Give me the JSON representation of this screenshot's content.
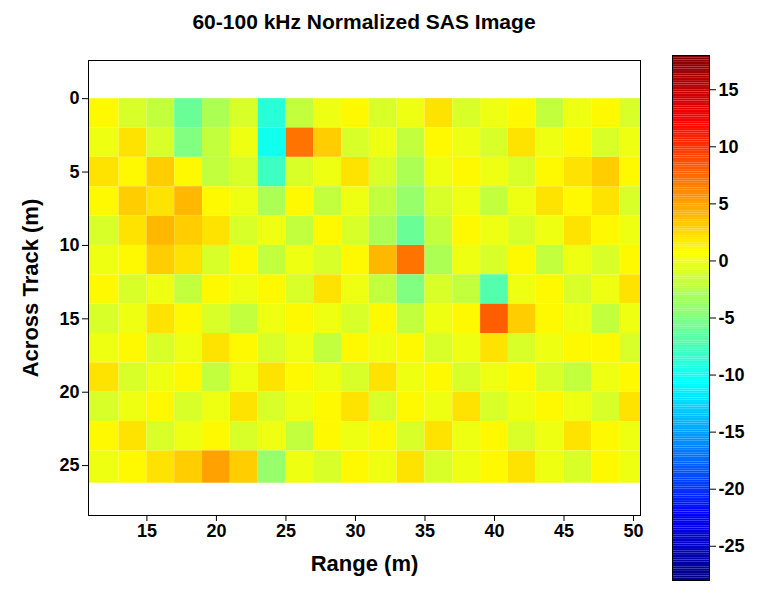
{
  "chart_data": {
    "type": "heatmap",
    "title": "60-100 kHz Normalized SAS Image",
    "x_label": "Range (m)",
    "y_label": "Across Track (m)",
    "xlim": [
      10.8,
      50.5
    ],
    "ylim": [
      -2.6,
      28.4
    ],
    "xticks": [
      15,
      20,
      25,
      30,
      35,
      40,
      45,
      50
    ],
    "yticks": [
      0,
      5,
      10,
      15,
      20,
      25
    ],
    "x_edges": [
      10.8,
      13,
      15,
      17,
      19,
      21,
      23,
      25,
      27,
      29,
      31,
      33,
      35,
      37,
      39,
      41,
      43,
      45,
      47,
      49,
      50.5
    ],
    "y_edges": [
      0,
      2,
      4,
      6,
      8,
      10,
      12,
      14,
      16,
      18,
      20,
      22,
      24,
      26.2
    ],
    "values": [
      [
        1,
        -1,
        -2,
        -6,
        -3,
        -1,
        -9,
        -2,
        0,
        1,
        -1,
        0,
        2,
        -1,
        0,
        1,
        -2,
        0,
        1,
        -1
      ],
      [
        0,
        2,
        -1,
        -5,
        -2,
        0,
        -10,
        7,
        3,
        -1,
        0,
        -2,
        1,
        0,
        -1,
        2,
        0,
        1,
        -1,
        0
      ],
      [
        2,
        1,
        3,
        1,
        -2,
        -1,
        -8,
        -1,
        0,
        2,
        -1,
        -3,
        0,
        1,
        0,
        -1,
        1,
        2,
        3,
        1
      ],
      [
        1,
        3,
        2,
        4,
        1,
        0,
        -3,
        1,
        -2,
        0,
        -2,
        -4,
        -1,
        0,
        -2,
        0,
        2,
        1,
        2,
        -1
      ],
      [
        -1,
        2,
        4,
        3,
        2,
        -1,
        0,
        -2,
        1,
        -1,
        -3,
        -6,
        -2,
        1,
        0,
        -1,
        0,
        2,
        1,
        0
      ],
      [
        0,
        1,
        3,
        2,
        -1,
        1,
        -2,
        0,
        -1,
        1,
        4,
        7,
        -3,
        0,
        -1,
        1,
        -2,
        0,
        -1,
        1
      ],
      [
        1,
        -1,
        0,
        -2,
        1,
        0,
        1,
        -1,
        2,
        0,
        -2,
        -5,
        -1,
        -2,
        -7,
        0,
        1,
        -1,
        0,
        2
      ],
      [
        -1,
        0,
        2,
        1,
        -1,
        -2,
        0,
        1,
        0,
        -1,
        1,
        -2,
        0,
        1,
        8,
        3,
        1,
        0,
        -2,
        0
      ],
      [
        0,
        1,
        -1,
        0,
        2,
        1,
        -1,
        0,
        -2,
        1,
        0,
        1,
        -1,
        0,
        2,
        -1,
        0,
        1,
        1,
        -1
      ],
      [
        2,
        -1,
        0,
        1,
        -2,
        0,
        2,
        1,
        0,
        -1,
        2,
        0,
        1,
        -1,
        0,
        1,
        -1,
        -2,
        0,
        1
      ],
      [
        -1,
        0,
        1,
        -1,
        0,
        2,
        -1,
        0,
        1,
        2,
        -1,
        1,
        0,
        2,
        -1,
        0,
        1,
        0,
        -1,
        2
      ],
      [
        1,
        2,
        -1,
        0,
        1,
        -1,
        0,
        -2,
        1,
        0,
        1,
        -1,
        2,
        0,
        1,
        -1,
        0,
        2,
        1,
        0
      ],
      [
        0,
        1,
        2,
        3,
        5,
        3,
        -4,
        0,
        -1,
        1,
        0,
        2,
        -1,
        0,
        1,
        2,
        0,
        -1,
        1,
        0
      ]
    ],
    "colorbar_lim": [
      -28,
      18
    ],
    "colorbar_ticks": [
      -25,
      -20,
      -15,
      -10,
      -5,
      0,
      5,
      10,
      15
    ]
  }
}
